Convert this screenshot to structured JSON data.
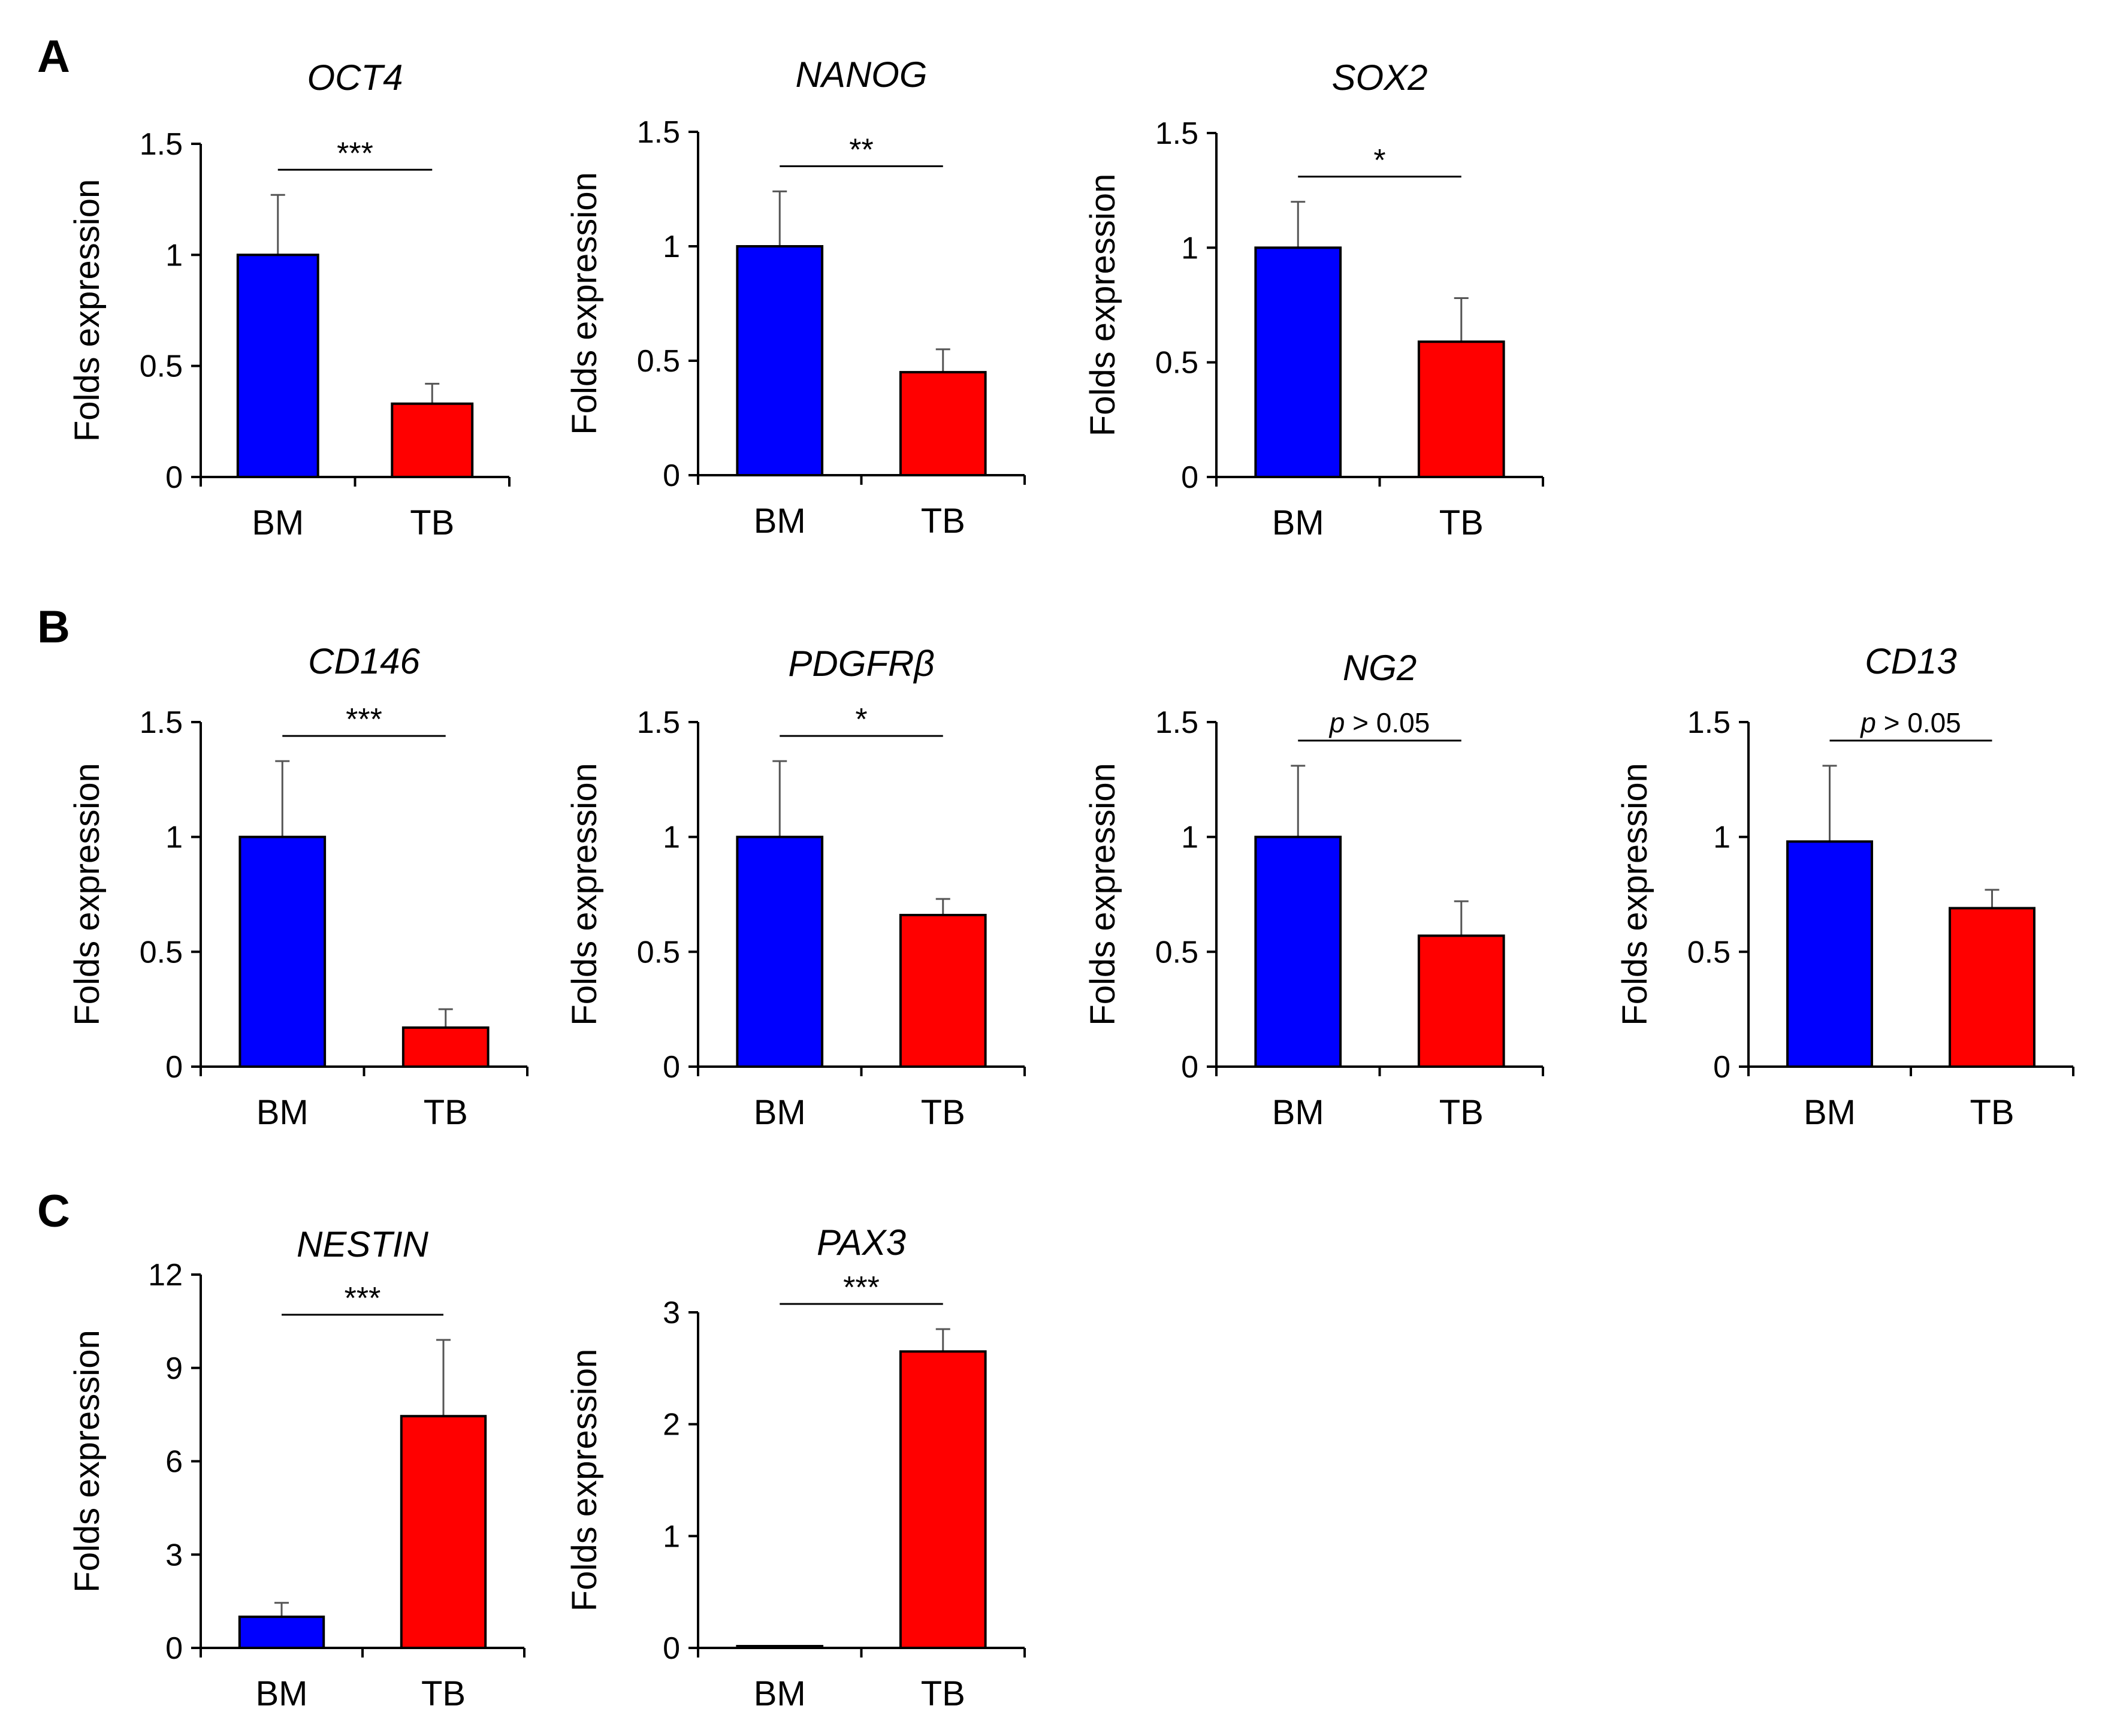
{
  "panel_labels": [
    "A",
    "B",
    "C"
  ],
  "colors": {
    "BM": "#0000ff",
    "TB": "#ff0000",
    "axis": "#000000",
    "error_bar": "#555555"
  },
  "chart_data": [
    {
      "type": "bar",
      "panel": "A",
      "title": "OCT4",
      "ylabel": "Folds expression",
      "categories": [
        "BM",
        "TB"
      ],
      "values": [
        1.0,
        0.33
      ],
      "errors": [
        0.27,
        0.09
      ],
      "yticks": [
        "0",
        "0.5",
        "1",
        "1.5"
      ],
      "ylim": [
        0,
        1.5
      ],
      "significance": "***"
    },
    {
      "type": "bar",
      "panel": "A",
      "title": "NANOG",
      "ylabel": "Folds expression",
      "categories": [
        "BM",
        "TB"
      ],
      "values": [
        1.0,
        0.45
      ],
      "errors": [
        0.24,
        0.1
      ],
      "yticks": [
        "0",
        "0.5",
        "1",
        "1.5"
      ],
      "ylim": [
        0,
        1.5
      ],
      "significance": "**"
    },
    {
      "type": "bar",
      "panel": "A",
      "title": "SOX2",
      "ylabel": "Folds expression",
      "categories": [
        "BM",
        "TB"
      ],
      "values": [
        1.0,
        0.59
      ],
      "errors": [
        0.2,
        0.19
      ],
      "yticks": [
        "0",
        "0.5",
        "1",
        "1.5"
      ],
      "ylim": [
        0,
        1.5
      ],
      "significance": "*"
    },
    {
      "type": "bar",
      "panel": "B",
      "title": "CD146",
      "ylabel": "Folds expression",
      "categories": [
        "BM",
        "TB"
      ],
      "values": [
        1.0,
        0.17
      ],
      "errors": [
        0.33,
        0.08
      ],
      "yticks": [
        "0",
        "0.5",
        "1",
        "1.5"
      ],
      "ylim": [
        0,
        1.5
      ],
      "significance": "***"
    },
    {
      "type": "bar",
      "panel": "B",
      "title": "PDGFRβ",
      "ylabel": "Folds expression",
      "categories": [
        "BM",
        "TB"
      ],
      "values": [
        1.0,
        0.66
      ],
      "errors": [
        0.33,
        0.07
      ],
      "yticks": [
        "0",
        "0.5",
        "1",
        "1.5"
      ],
      "ylim": [
        0,
        1.5
      ],
      "significance": "*"
    },
    {
      "type": "bar",
      "panel": "B",
      "title": "NG2",
      "ylabel": "Folds expression",
      "categories": [
        "BM",
        "TB"
      ],
      "values": [
        1.0,
        0.57
      ],
      "errors": [
        0.31,
        0.15
      ],
      "yticks": [
        "0",
        "0.5",
        "1",
        "1.5"
      ],
      "ylim": [
        0,
        1.5
      ],
      "significance": "p > 0.05"
    },
    {
      "type": "bar",
      "panel": "B",
      "title": "CD13",
      "ylabel": "Folds expression",
      "categories": [
        "BM",
        "TB"
      ],
      "values": [
        0.98,
        0.69
      ],
      "errors": [
        0.33,
        0.08
      ],
      "yticks": [
        "0",
        "0.5",
        "1",
        "1.5"
      ],
      "ylim": [
        0,
        1.5
      ],
      "significance": "p > 0.05"
    },
    {
      "type": "bar",
      "panel": "C",
      "title": "NESTIN",
      "ylabel": "Folds expression",
      "categories": [
        "BM",
        "TB"
      ],
      "values": [
        1.0,
        7.45
      ],
      "errors": [
        0.45,
        2.45
      ],
      "yticks": [
        "0",
        "3",
        "6",
        "9",
        "12"
      ],
      "ylim": [
        0,
        12
      ],
      "significance": "***"
    },
    {
      "type": "bar",
      "panel": "C",
      "title": "PAX3",
      "ylabel": "Folds expression",
      "categories": [
        "BM",
        "TB"
      ],
      "values": [
        0.01,
        2.65
      ],
      "errors": [
        0,
        0.2
      ],
      "yticks": [
        "0",
        "1",
        "2",
        "3"
      ],
      "ylim": [
        0,
        3
      ],
      "significance": "***"
    }
  ]
}
